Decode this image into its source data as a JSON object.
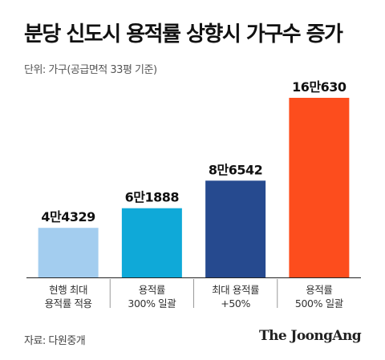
{
  "header": {
    "title": "분당 신도시 용적률 상향시 가구수 증가",
    "unit_note": "단위: 가구(공급면적 33평 기준)"
  },
  "footer": {
    "source": "자료: 다원중개",
    "brand": "The JoongAng"
  },
  "chart_data": {
    "type": "bar",
    "title": "분당 신도시 용적률 상향시 가구수 증가",
    "ylabel": "",
    "xlabel": "",
    "categories": [
      [
        "현행 최대",
        "용적률 적용"
      ],
      [
        "용적률",
        "300% 일괄"
      ],
      [
        "최대 용적률",
        "+50%"
      ],
      [
        "용적률",
        "500% 일괄"
      ]
    ],
    "values": [
      44329,
      61888,
      86542,
      160630
    ],
    "value_labels": [
      "4만4329",
      "6만1888",
      "8만6542",
      "16만630"
    ],
    "colors": [
      "#a3cdef",
      "#0fa9d8",
      "#264a8f",
      "#fd4d1d"
    ],
    "ylim": [
      0,
      160630
    ],
    "grid": false,
    "legend": "none"
  }
}
